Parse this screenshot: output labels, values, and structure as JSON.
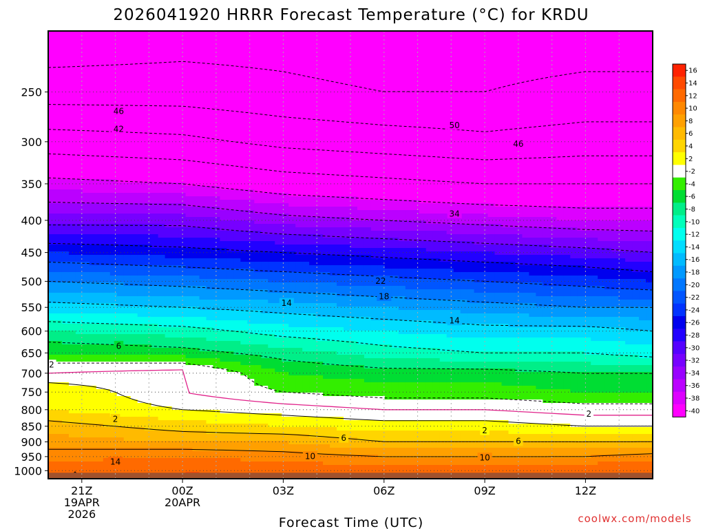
{
  "chart_data": {
    "type": "heatmap",
    "title": "2026041920 HRRR Forecast Temperature (°C) for KRDU",
    "xlabel": "Forecast Time (UTC)",
    "ylabel": "",
    "credit": "coolwx.com/models",
    "x_ticks": [
      {
        "hour": 1,
        "lines": [
          "21Z",
          "19APR",
          "2026"
        ]
      },
      {
        "hour": 4,
        "lines": [
          "00Z",
          "20APR"
        ]
      },
      {
        "hour": 7,
        "lines": [
          "03Z"
        ]
      },
      {
        "hour": 10,
        "lines": [
          "06Z"
        ]
      },
      {
        "hour": 13,
        "lines": [
          "09Z"
        ]
      },
      {
        "hour": 16,
        "lines": [
          "12Z"
        ]
      }
    ],
    "xlim": [
      0,
      18
    ],
    "y_scale": "log-pressure",
    "ylim": [
      1030,
      200
    ],
    "y_ticks": [
      250,
      300,
      350,
      400,
      450,
      500,
      550,
      600,
      650,
      700,
      750,
      800,
      850,
      900,
      950,
      1000
    ],
    "grid": true,
    "colorbar": {
      "placement": "right",
      "labels": [
        "16",
        "14",
        "12",
        "10",
        "8",
        "6",
        "4",
        "2",
        "-2",
        "-4",
        "-6",
        "-8",
        "-10",
        "-12",
        "-14",
        "-16",
        "-18",
        "-20",
        "-22",
        "-24",
        "-26",
        "-28",
        "-30",
        "-32",
        "-34",
        "-36",
        "-38",
        "-40"
      ],
      "colors": [
        "#ff2200",
        "#ff4a00",
        "#ff6a00",
        "#ff8800",
        "#ffa000",
        "#ffba00",
        "#ffd500",
        "#ffff00",
        "#ffffff",
        "#33ee00",
        "#00dd33",
        "#00ee88",
        "#00ffbb",
        "#00ffee",
        "#00ddff",
        "#00bbff",
        "#0099ff",
        "#0077ff",
        "#0055ff",
        "#0033ff",
        "#0000ee",
        "#2200ff",
        "#5500ff",
        "#7700ff",
        "#9900ff",
        "#bb00ff",
        "#dd00ff",
        "#ff00ff"
      ]
    },
    "ground_color": "#a0522d",
    "profile_hours": [
      0,
      4,
      7,
      10,
      13,
      16,
      18
    ],
    "profiles": [
      {
        "hour": 0,
        "levels": [
          [
            1000,
            14
          ],
          [
            950,
            11
          ],
          [
            900,
            9
          ],
          [
            850,
            7
          ],
          [
            800,
            4
          ],
          [
            750,
            4
          ],
          [
            700,
            0
          ],
          [
            650,
            -4
          ],
          [
            600,
            -8
          ],
          [
            550,
            -13
          ],
          [
            500,
            -18
          ],
          [
            450,
            -24
          ],
          [
            400,
            -31
          ],
          [
            350,
            -37
          ],
          [
            300,
            -44
          ],
          [
            250,
            -52
          ],
          [
            200,
            -57
          ]
        ]
      },
      {
        "hour": 4,
        "levels": [
          [
            1000,
            14
          ],
          [
            950,
            12
          ],
          [
            900,
            8
          ],
          [
            850,
            5
          ],
          [
            800,
            2
          ],
          [
            750,
            0
          ],
          [
            700,
            1
          ],
          [
            650,
            -5
          ],
          [
            600,
            -9
          ],
          [
            550,
            -14
          ],
          [
            500,
            -19
          ],
          [
            450,
            -25
          ],
          [
            400,
            -31
          ],
          [
            350,
            -38
          ],
          [
            300,
            -45
          ],
          [
            250,
            -52
          ],
          [
            200,
            -56
          ]
        ]
      },
      {
        "hour": 7,
        "levels": [
          [
            1000,
            14
          ],
          [
            950,
            11
          ],
          [
            900,
            8
          ],
          [
            850,
            4
          ],
          [
            800,
            1
          ],
          [
            750,
            -2
          ],
          [
            700,
            -4
          ],
          [
            650,
            -7
          ],
          [
            600,
            -11
          ],
          [
            550,
            -15
          ],
          [
            500,
            -20
          ],
          [
            450,
            -26
          ],
          [
            400,
            -33
          ],
          [
            350,
            -40
          ],
          [
            300,
            -47
          ],
          [
            250,
            -53
          ],
          [
            200,
            -56
          ]
        ]
      },
      {
        "hour": 10,
        "levels": [
          [
            1000,
            13
          ],
          [
            950,
            10
          ],
          [
            900,
            6
          ],
          [
            850,
            3
          ],
          [
            800,
            0
          ],
          [
            750,
            -3
          ],
          [
            700,
            -5
          ],
          [
            650,
            -9
          ],
          [
            600,
            -12
          ],
          [
            550,
            -16
          ],
          [
            500,
            -21
          ],
          [
            450,
            -27
          ],
          [
            400,
            -34
          ],
          [
            350,
            -41
          ],
          [
            300,
            -48
          ],
          [
            250,
            -54
          ],
          [
            200,
            -57
          ]
        ]
      },
      {
        "hour": 13,
        "levels": [
          [
            1000,
            13
          ],
          [
            950,
            10
          ],
          [
            900,
            6
          ],
          [
            850,
            3
          ],
          [
            800,
            0
          ],
          [
            750,
            -3
          ],
          [
            700,
            -5
          ],
          [
            650,
            -10
          ],
          [
            600,
            -13
          ],
          [
            550,
            -17
          ],
          [
            500,
            -22
          ],
          [
            450,
            -28
          ],
          [
            400,
            -35
          ],
          [
            350,
            -42
          ],
          [
            300,
            -49
          ],
          [
            250,
            -54
          ],
          [
            200,
            -56
          ]
        ]
      },
      {
        "hour": 16,
        "levels": [
          [
            1000,
            14
          ],
          [
            950,
            10
          ],
          [
            900,
            6
          ],
          [
            850,
            2
          ],
          [
            800,
            -1
          ],
          [
            750,
            -4
          ],
          [
            700,
            -6
          ],
          [
            650,
            -10
          ],
          [
            600,
            -13
          ],
          [
            550,
            -18
          ],
          [
            500,
            -23
          ],
          [
            450,
            -29
          ],
          [
            400,
            -36
          ],
          [
            350,
            -42
          ],
          [
            300,
            -48
          ],
          [
            250,
            -53
          ],
          [
            200,
            -56
          ]
        ]
      },
      {
        "hour": 18,
        "levels": [
          [
            1000,
            14
          ],
          [
            950,
            11
          ],
          [
            900,
            6
          ],
          [
            850,
            2
          ],
          [
            800,
            -1
          ],
          [
            750,
            -4
          ],
          [
            700,
            -6
          ],
          [
            650,
            -11
          ],
          [
            600,
            -14
          ],
          [
            550,
            -18
          ],
          [
            500,
            -24
          ],
          [
            450,
            -30
          ],
          [
            400,
            -36
          ],
          [
            350,
            -42
          ],
          [
            300,
            -48
          ],
          [
            250,
            -53
          ],
          [
            200,
            -56
          ]
        ]
      }
    ],
    "contour_labels": [
      {
        "hour": 2.1,
        "p": 268,
        "text": "46"
      },
      {
        "hour": 2.1,
        "p": 286,
        "text": "42"
      },
      {
        "hour": 2.1,
        "p": 633,
        "text": "6"
      },
      {
        "hour": 0.1,
        "p": 678,
        "text": "2"
      },
      {
        "hour": 2.0,
        "p": 827,
        "text": "2"
      },
      {
        "hour": 2.0,
        "p": 967,
        "text": "14"
      },
      {
        "hour": 7.1,
        "p": 541,
        "text": "14"
      },
      {
        "hour": 9.9,
        "p": 499,
        "text": "22"
      },
      {
        "hour": 10.0,
        "p": 528,
        "text": "18"
      },
      {
        "hour": 12.1,
        "p": 577,
        "text": "14"
      },
      {
        "hour": 12.1,
        "p": 282,
        "text": "50"
      },
      {
        "hour": 12.1,
        "p": 390,
        "text": "34"
      },
      {
        "hour": 14.0,
        "p": 302,
        "text": "46"
      },
      {
        "hour": 8.8,
        "p": 887,
        "text": "6"
      },
      {
        "hour": 7.8,
        "p": 948,
        "text": "10"
      },
      {
        "hour": 13.0,
        "p": 862,
        "text": "2"
      },
      {
        "hour": 14.0,
        "p": 897,
        "text": "6"
      },
      {
        "hour": 13.0,
        "p": 953,
        "text": "10"
      },
      {
        "hour": 16.1,
        "p": 812,
        "text": "2"
      }
    ]
  }
}
